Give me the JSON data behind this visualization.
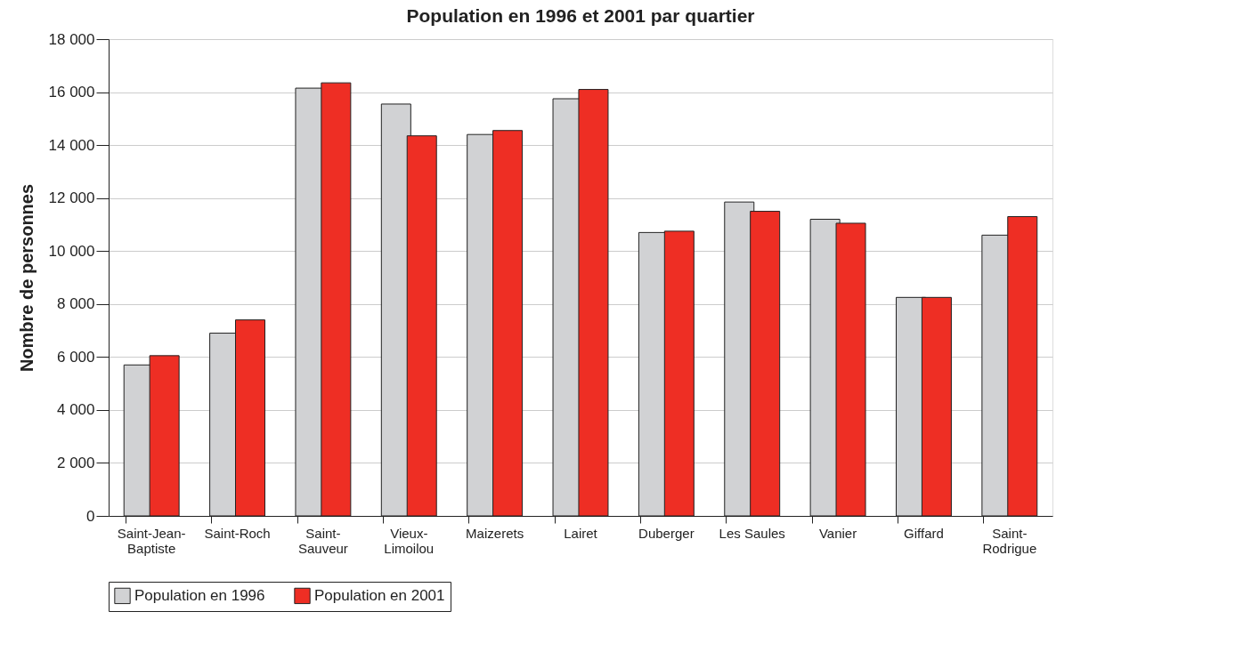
{
  "chart_data": {
    "type": "bar",
    "title": "Population en 1996 et 2001 par quartier",
    "ylabel": "Nombre de personnes",
    "categories": [
      "Saint-Jean-Baptiste",
      "Saint-Roch",
      "Saint-Sauveur",
      "Vieux-Limoilou",
      "Maizerets",
      "Lairet",
      "Duberger",
      "Les Saules",
      "Vanier",
      "Giffard",
      "Saint-Rodrigue"
    ],
    "series": [
      {
        "name": "Population en 1996",
        "color": "#d1d2d4",
        "values": [
          5700,
          6900,
          16150,
          15550,
          14400,
          15750,
          10700,
          11850,
          11200,
          8250,
          10600
        ]
      },
      {
        "name": "Population en 2001",
        "color": "#ee2e24",
        "values": [
          6050,
          7400,
          16350,
          14350,
          14550,
          16100,
          10750,
          11500,
          11050,
          8250,
          11300
        ]
      }
    ],
    "ylim": [
      0,
      18000
    ],
    "yticks": [
      {
        "value": 0,
        "label": "0"
      },
      {
        "value": 2000,
        "label": "2 000"
      },
      {
        "value": 4000,
        "label": "4 000"
      },
      {
        "value": 6000,
        "label": "6 000"
      },
      {
        "value": 8000,
        "label": "8 000"
      },
      {
        "value": 10000,
        "label": "10 000"
      },
      {
        "value": 12000,
        "label": "12 000"
      },
      {
        "value": 14000,
        "label": "14 000"
      },
      {
        "value": 16000,
        "label": "16 000"
      },
      {
        "value": 18000,
        "label": "18 000"
      }
    ],
    "grid": "y",
    "legend": "bottom"
  }
}
